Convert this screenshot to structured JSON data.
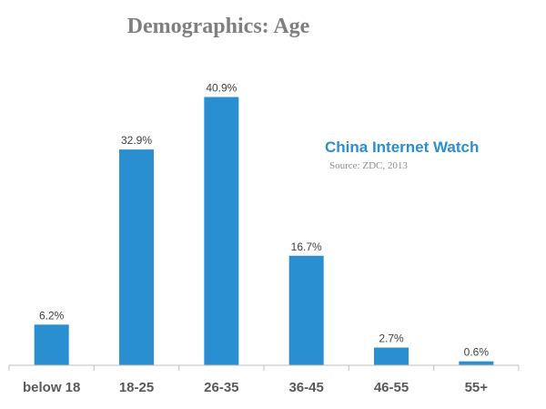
{
  "chart_data": {
    "type": "bar",
    "title": "Demographics: Age",
    "categories": [
      "below 18",
      "18-25",
      "26-35",
      "36-45",
      "46-55",
      "55+"
    ],
    "values": [
      6.2,
      32.9,
      40.9,
      16.7,
      2.7,
      0.6
    ],
    "value_labels": [
      "6.2%",
      "32.9%",
      "40.9%",
      "16.7%",
      "2.7%",
      "0.6%"
    ],
    "xlabel": "",
    "ylabel": "",
    "ylim": [
      0,
      45
    ],
    "grid": false,
    "bar_color": "#2a8fd1",
    "watermark": "China Internet Watch",
    "source": "Source: ZDC, 2013"
  }
}
